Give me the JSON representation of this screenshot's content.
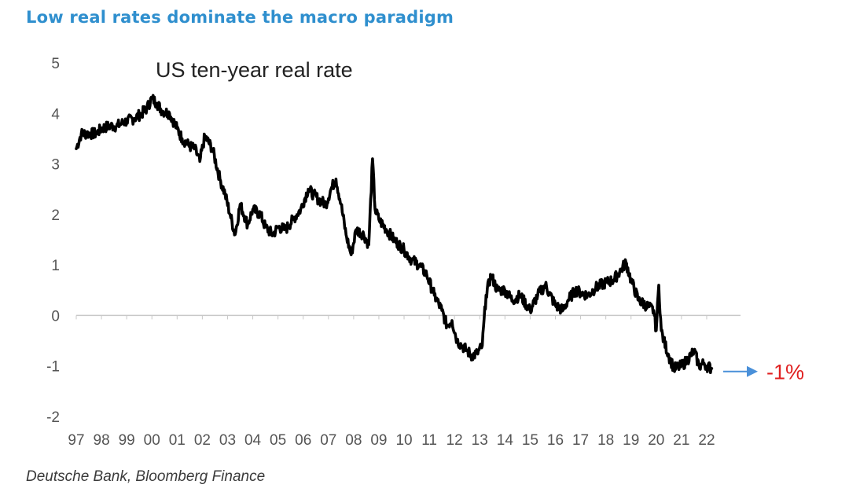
{
  "headline": "Low real rates dominate the macro paradigm",
  "source": "Deutsche Bank, Bloomberg Finance",
  "colors": {
    "headline": "#2f8fce",
    "line": "#000000",
    "axis": "#c8c8c8",
    "arrow": "#4a90d9",
    "annotation": "#e02020"
  },
  "chart_data": {
    "type": "line",
    "title": "US ten-year real rate",
    "xlabel": "",
    "ylabel": "",
    "ylim": [
      -2,
      5
    ],
    "xlim": [
      1997,
      2022.5
    ],
    "yticks": [
      "5",
      "4",
      "3",
      "2",
      "1",
      "0",
      "-1",
      "-2"
    ],
    "xticks": [
      "97",
      "98",
      "99",
      "00",
      "01",
      "02",
      "03",
      "04",
      "05",
      "06",
      "07",
      "08",
      "09",
      "10",
      "11",
      "12",
      "13",
      "14",
      "15",
      "16",
      "17",
      "18",
      "19",
      "20",
      "21",
      "22"
    ],
    "annotation": {
      "text": "-1%",
      "value": -1
    },
    "series": [
      {
        "name": "US ten-year real rate",
        "x": [
          1997.0,
          1997.2,
          1997.5,
          1997.8,
          1998.0,
          1998.3,
          1998.6,
          1998.8,
          1999.0,
          1999.3,
          1999.6,
          1999.8,
          2000.0,
          2000.2,
          2000.4,
          2000.7,
          2001.0,
          2001.2,
          2001.5,
          2001.7,
          2001.9,
          2002.1,
          2002.4,
          2002.7,
          2002.9,
          2003.1,
          2003.3,
          2003.5,
          2003.8,
          2004.0,
          2004.3,
          2004.5,
          2004.8,
          2005.0,
          2005.3,
          2005.6,
          2005.9,
          2006.2,
          2006.4,
          2006.6,
          2006.9,
          2007.1,
          2007.3,
          2007.5,
          2007.7,
          2007.9,
          2008.1,
          2008.4,
          2008.6,
          2008.75,
          2008.85,
          2009.0,
          2009.3,
          2009.6,
          2010.0,
          2010.3,
          2010.6,
          2010.9,
          2011.2,
          2011.5,
          2011.7,
          2011.9,
          2012.1,
          2012.3,
          2012.5,
          2012.7,
          2012.9,
          2013.1,
          2013.25,
          2013.45,
          2013.7,
          2014.0,
          2014.3,
          2014.6,
          2015.0,
          2015.3,
          2015.6,
          2016.0,
          2016.3,
          2016.5,
          2016.8,
          2017.0,
          2017.3,
          2017.6,
          2018.0,
          2018.3,
          2018.6,
          2018.8,
          2019.0,
          2019.3,
          2019.6,
          2019.9,
          2020.0,
          2020.1,
          2020.2,
          2020.3,
          2020.5,
          2020.7,
          2021.0,
          2021.2,
          2021.5,
          2021.7,
          2021.9,
          2022.0,
          2022.2
        ],
        "values": [
          3.3,
          3.6,
          3.6,
          3.6,
          3.7,
          3.75,
          3.75,
          3.8,
          3.85,
          3.9,
          4.0,
          4.1,
          4.3,
          4.2,
          4.05,
          4.0,
          3.7,
          3.5,
          3.35,
          3.3,
          3.05,
          3.55,
          3.3,
          2.7,
          2.4,
          2.0,
          1.6,
          2.2,
          1.8,
          2.1,
          2.0,
          1.75,
          1.6,
          1.75,
          1.7,
          1.9,
          2.1,
          2.5,
          2.4,
          2.3,
          2.2,
          2.5,
          2.7,
          2.2,
          1.6,
          1.2,
          1.7,
          1.6,
          1.4,
          3.1,
          2.1,
          1.9,
          1.7,
          1.5,
          1.3,
          1.1,
          1.0,
          0.8,
          0.4,
          0.1,
          -0.2,
          -0.1,
          -0.5,
          -0.6,
          -0.7,
          -0.8,
          -0.75,
          -0.6,
          0.4,
          0.8,
          0.5,
          0.5,
          0.3,
          0.4,
          0.1,
          0.4,
          0.6,
          0.2,
          0.1,
          0.3,
          0.5,
          0.45,
          0.4,
          0.55,
          0.65,
          0.7,
          0.9,
          1.05,
          0.7,
          0.3,
          0.2,
          0.1,
          -0.3,
          0.6,
          -0.3,
          -0.5,
          -0.8,
          -1.05,
          -1.0,
          -0.9,
          -0.7,
          -1.0,
          -0.95,
          -1.0,
          -1.05
        ]
      }
    ]
  }
}
